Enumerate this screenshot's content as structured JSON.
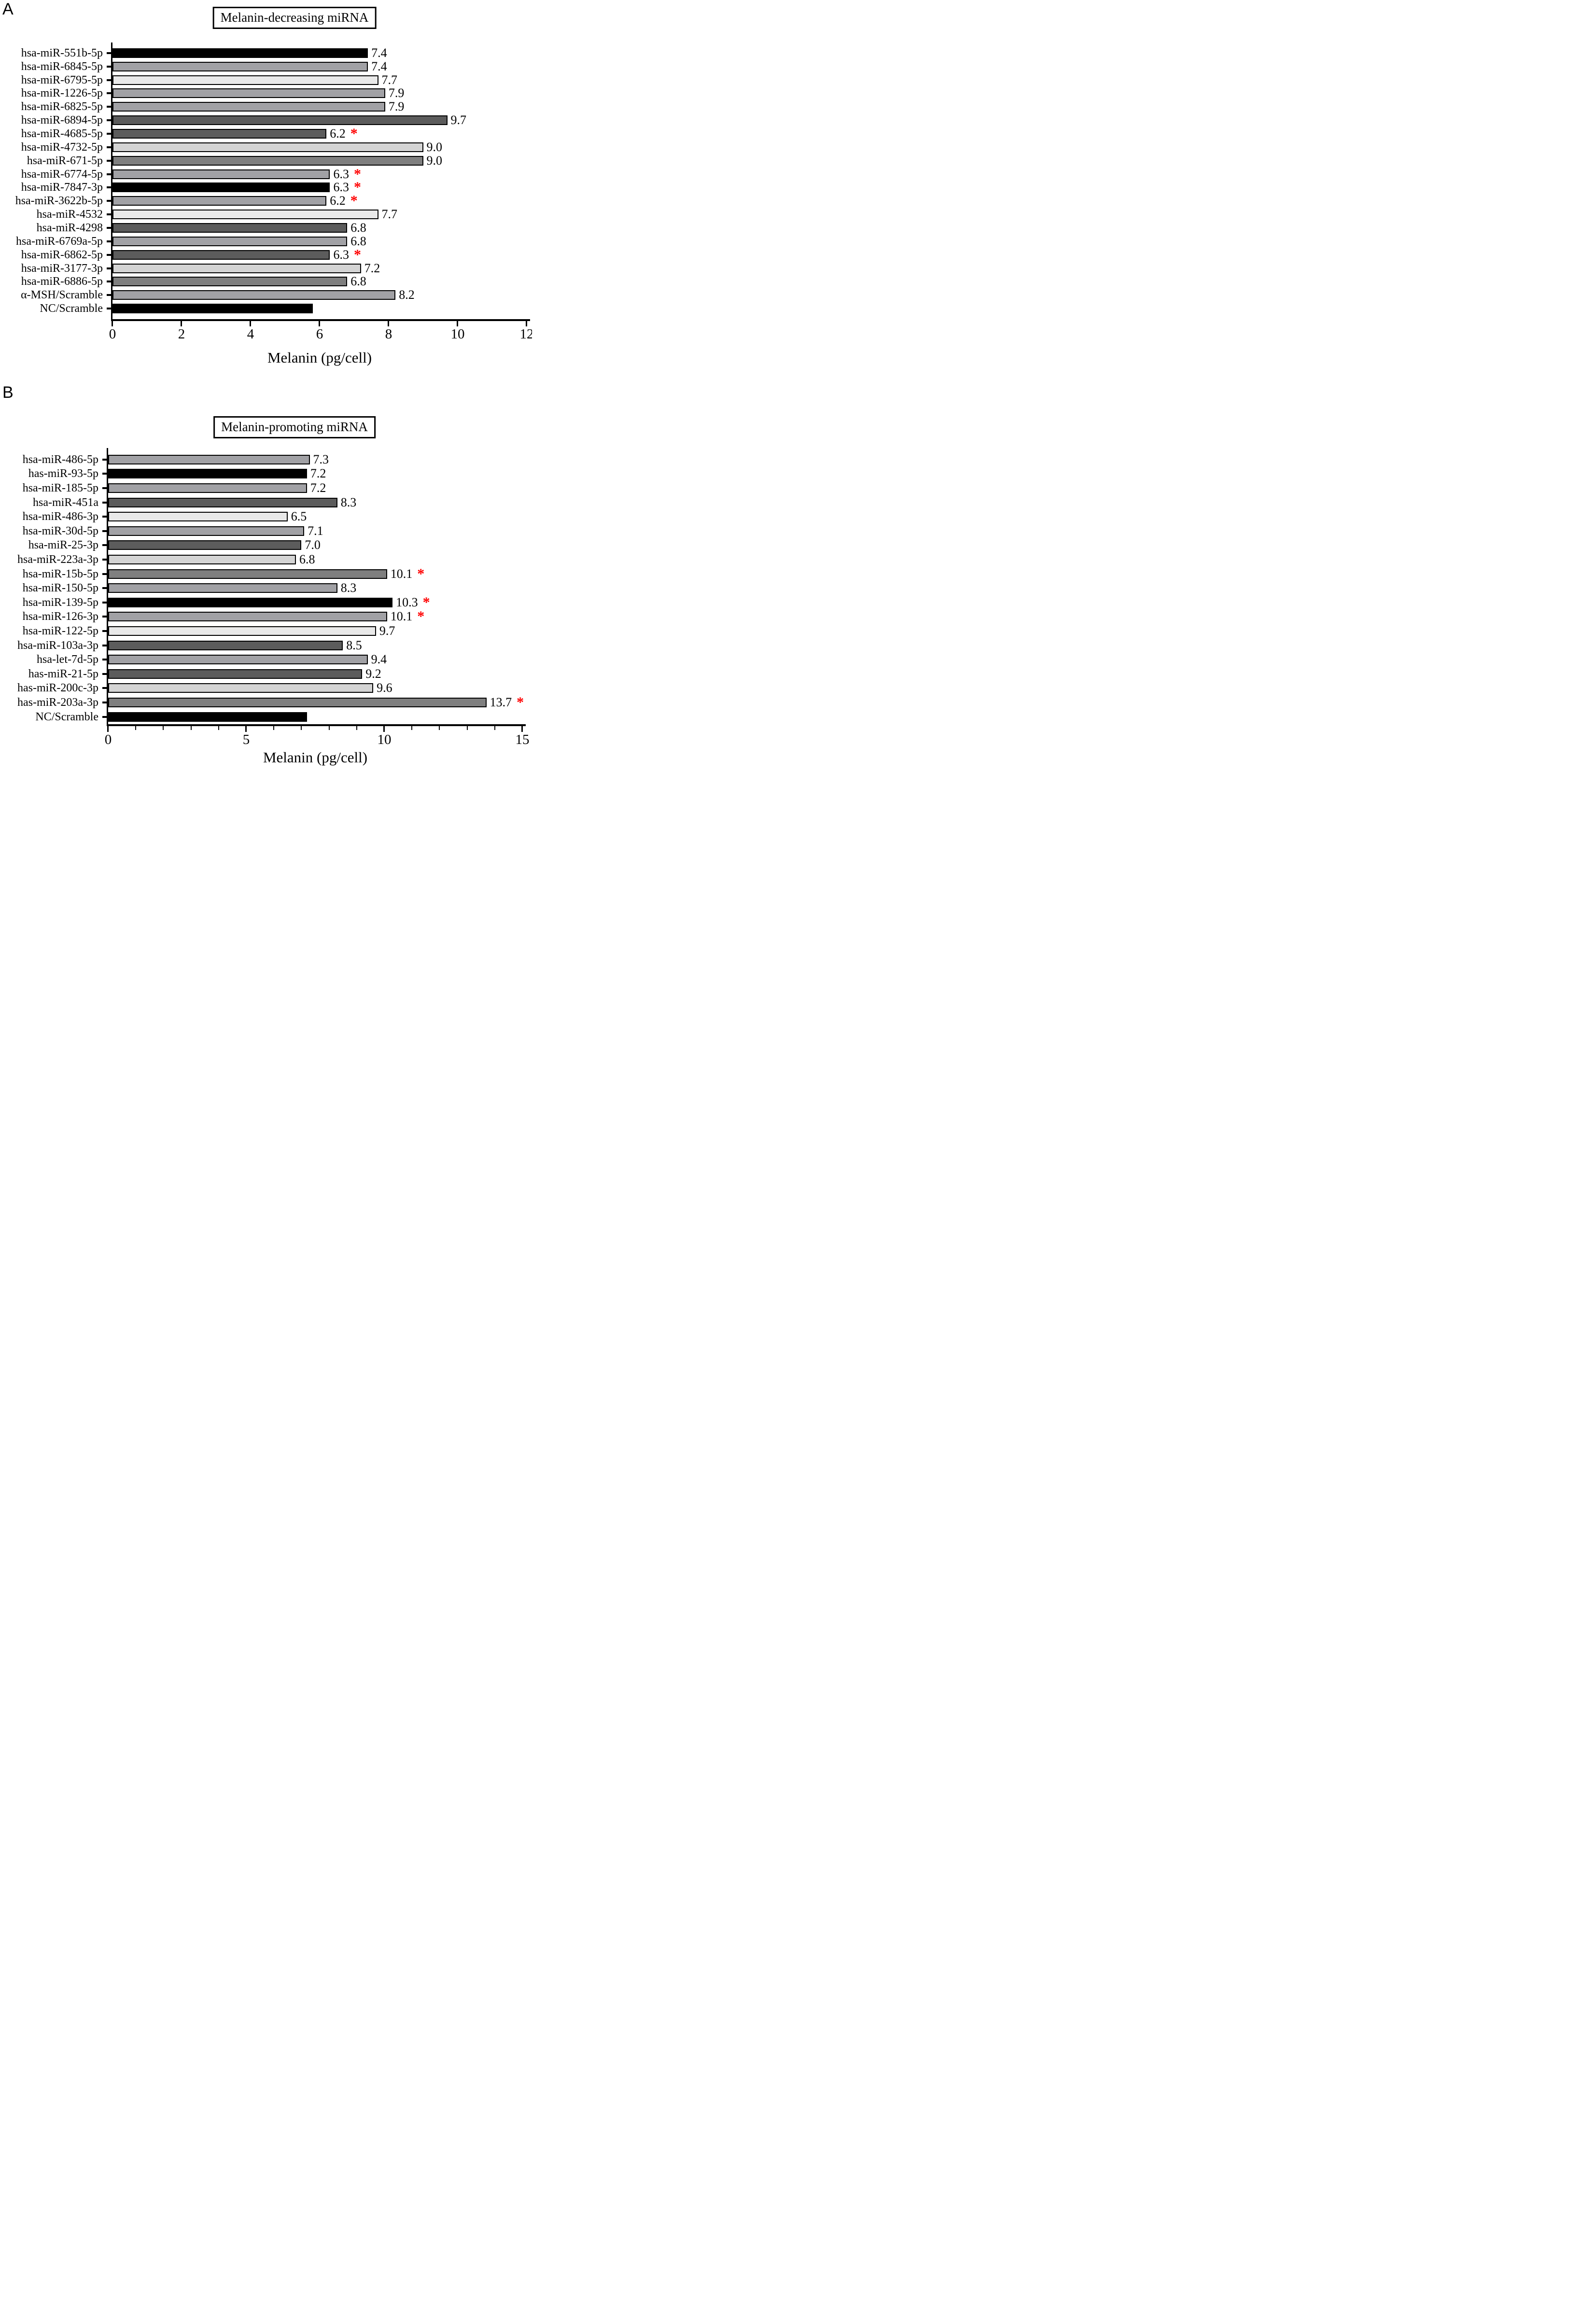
{
  "star_marker": "*",
  "star_color": "#ff0000",
  "axis_color": "#000000",
  "chart_data": [
    {
      "type": "bar",
      "orientation": "horizontal",
      "panel_label": "A",
      "title": "Melanin-decreasing miRNA",
      "xlabel": "Melanin (pg/cell)",
      "xlim": [
        0,
        12
      ],
      "xticks": [
        0,
        2,
        4,
        6,
        8,
        10,
        12
      ],
      "minor_tick_step": null,
      "legend": null,
      "grid": false,
      "categories": [
        "hsa-miR-551b-5p",
        "hsa-miR-6845-5p",
        "hsa-miR-6795-5p",
        "hsa-miR-1226-5p",
        "hsa-miR-6825-5p",
        "hsa-miR-6894-5p",
        "hsa-miR-4685-5p",
        "hsa-miR-4732-5p",
        "hsa-miR-671-5p",
        "hsa-miR-6774-5p",
        "hsa-miR-7847-3p",
        "hsa-miR-3622b-5p",
        "hsa-miR-4532",
        "hsa-miR-4298",
        "hsa-miR-6769a-5p",
        "hsa-miR-6862-5p",
        "hsa-miR-3177-3p",
        "hsa-miR-6886-5p",
        "α-MSH/Scramble",
        "NC/Scramble"
      ],
      "values": [
        7.4,
        7.4,
        7.7,
        7.9,
        7.9,
        9.7,
        6.2,
        9.0,
        9.0,
        6.3,
        6.3,
        6.2,
        7.7,
        6.8,
        6.8,
        6.3,
        7.2,
        6.8,
        8.2,
        5.8
      ],
      "value_labels": [
        "7.4",
        "7.4",
        "7.7",
        "7.9",
        "7.9",
        "9.7",
        "6.2",
        "9.0",
        "9.0",
        "6.3",
        "6.3",
        "6.2",
        "7.7",
        "6.8",
        "6.8",
        "6.3",
        "7.2",
        "6.8",
        "8.2",
        ""
      ],
      "significant": [
        false,
        false,
        false,
        false,
        false,
        false,
        true,
        false,
        false,
        true,
        true,
        true,
        false,
        false,
        false,
        true,
        false,
        false,
        false,
        false
      ],
      "bar_colors": [
        "#000000",
        "#a1a1a5",
        "#e9e9e9",
        "#a1a1a5",
        "#a1a1a5",
        "#5c5c5c",
        "#5c5c5c",
        "#d4d4d4",
        "#7f7f7f",
        "#a1a1a5",
        "#000000",
        "#a1a1a5",
        "#e9e9e9",
        "#5c5c5c",
        "#a1a1a5",
        "#5c5c5c",
        "#d4d4d4",
        "#7f7f7f",
        "#a1a1a5",
        "#000000"
      ]
    },
    {
      "type": "bar",
      "orientation": "horizontal",
      "panel_label": "B",
      "title": "Melanin-promoting miRNA",
      "xlabel": "Melanin (pg/cell)",
      "xlim": [
        0,
        15
      ],
      "xticks": [
        0,
        5,
        10,
        15
      ],
      "minor_tick_step": 1,
      "legend": null,
      "grid": false,
      "categories": [
        "hsa-miR-486-5p",
        "has-miR-93-5p",
        "hsa-miR-185-5p",
        "hsa-miR-451a",
        "hsa-miR-486-3p",
        "hsa-miR-30d-5p",
        "hsa-miR-25-3p",
        "hsa-miR-223a-3p",
        "hsa-miR-15b-5p",
        "hsa-miR-150-5p",
        "hsa-miR-139-5p",
        "hsa-miR-126-3p",
        "hsa-miR-122-5p",
        "hsa-miR-103a-3p",
        "hsa-let-7d-5p",
        "has-miR-21-5p",
        "has-miR-200c-3p",
        "has-miR-203a-3p",
        "NC/Scramble"
      ],
      "values": [
        7.3,
        7.2,
        7.2,
        8.3,
        6.5,
        7.1,
        7.0,
        6.8,
        10.1,
        8.3,
        10.3,
        10.1,
        9.7,
        8.5,
        9.4,
        9.2,
        9.6,
        13.7,
        7.2
      ],
      "value_labels": [
        "7.3",
        "7.2",
        "7.2",
        "8.3",
        "6.5",
        "7.1",
        "7.0",
        "6.8",
        "10.1",
        "8.3",
        "10.3",
        "10.1",
        "9.7",
        "8.5",
        "9.4",
        "9.2",
        "9.6",
        "13.7",
        ""
      ],
      "significant": [
        false,
        false,
        false,
        false,
        false,
        false,
        false,
        false,
        true,
        false,
        true,
        true,
        false,
        false,
        false,
        false,
        false,
        true,
        false
      ],
      "bar_colors": [
        "#a1a1a5",
        "#000000",
        "#a1a1a5",
        "#5c5c5c",
        "#e9e9e9",
        "#a1a1a5",
        "#5c5c5c",
        "#d4d4d4",
        "#7f7f7f",
        "#a1a1a5",
        "#000000",
        "#a1a1a5",
        "#e9e9e9",
        "#5c5c5c",
        "#a1a1a5",
        "#5c5c5c",
        "#d4d4d4",
        "#7f7f7f",
        "#000000"
      ]
    }
  ]
}
